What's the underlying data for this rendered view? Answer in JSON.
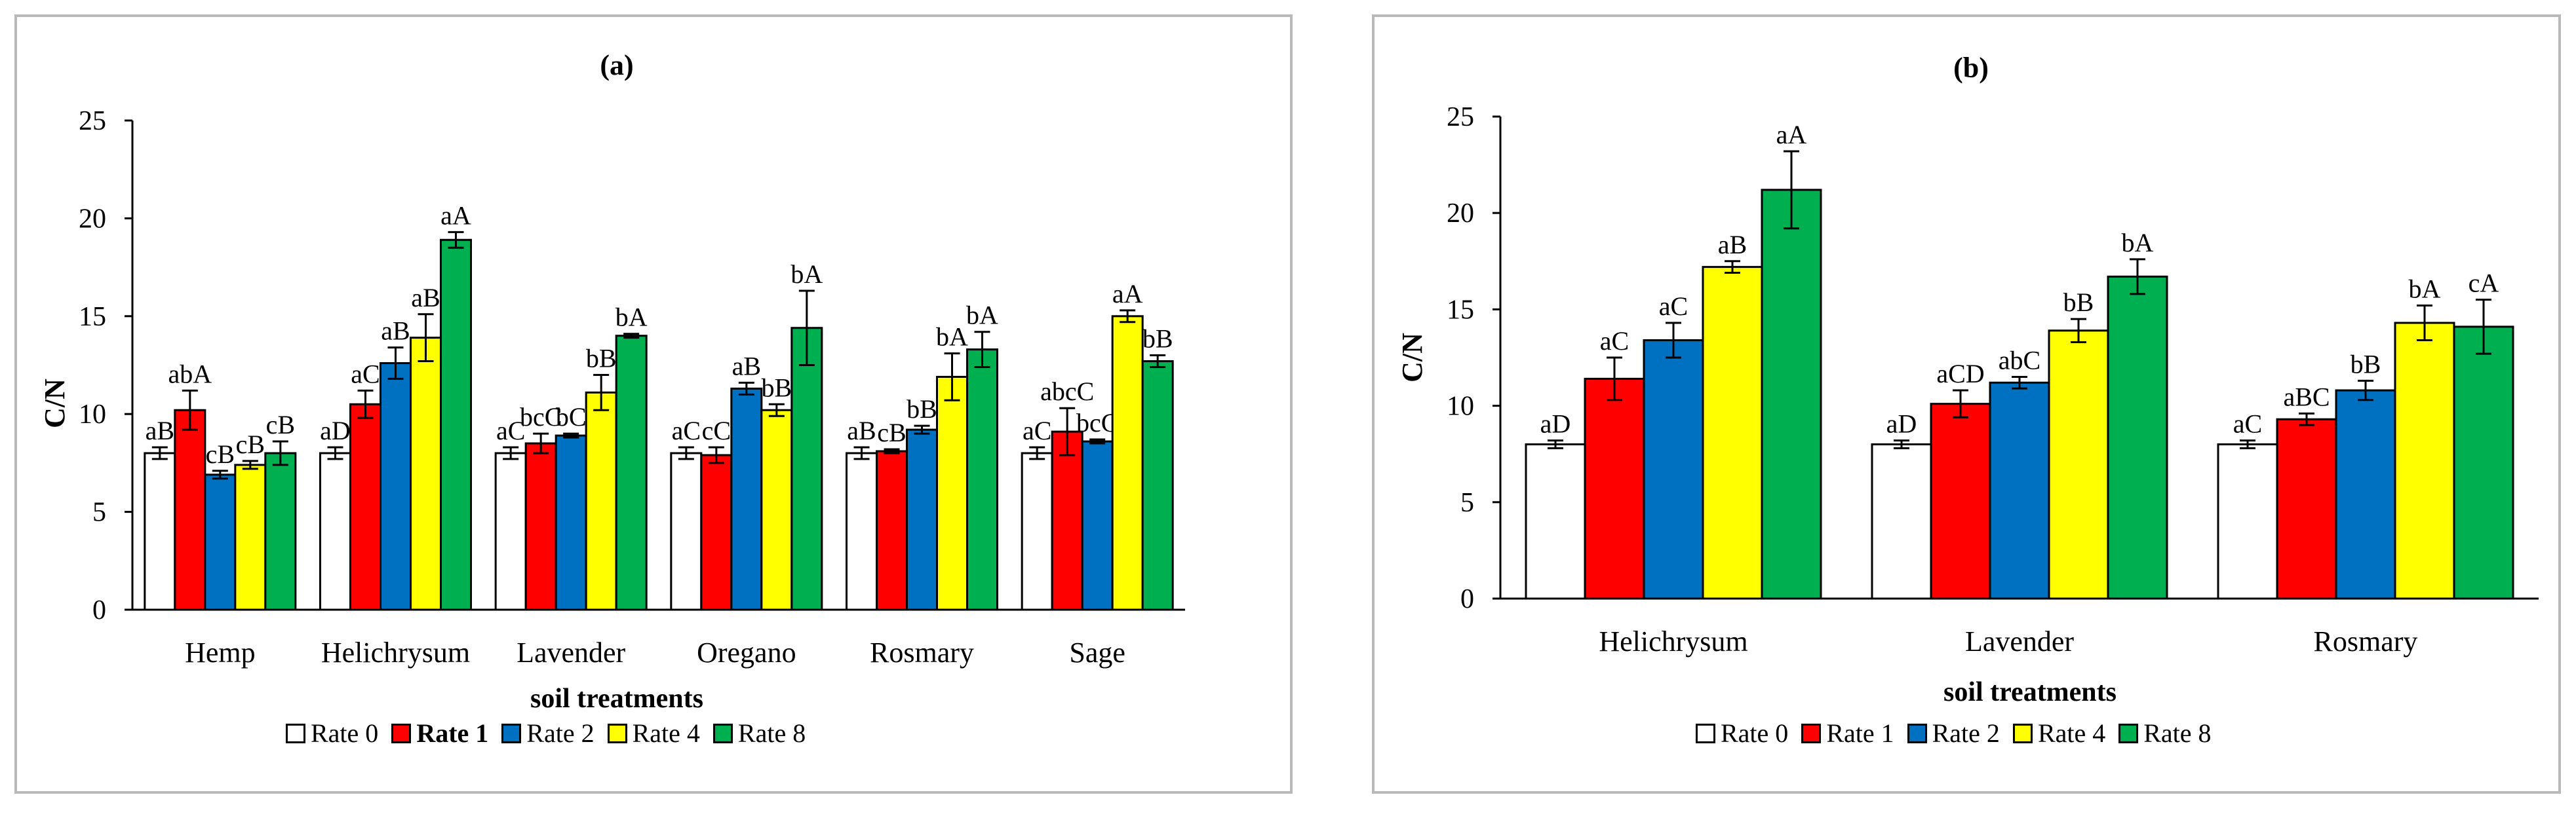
{
  "chart_data": [
    {
      "type": "bar",
      "panel_label": "(a)",
      "xlabel": "soil treatments",
      "ylabel": "C/N",
      "ylim": [
        0,
        25
      ],
      "yticks": [
        "0",
        "5",
        "10",
        "15",
        "20",
        "25"
      ],
      "categories": [
        "Hemp",
        "Helichrysum",
        "Lavender",
        "Oregano",
        "Rosmary",
        "Sage"
      ],
      "series": [
        {
          "name": "Rate 0",
          "color": "#ffffff",
          "values": [
            8.0,
            8.0,
            8.0,
            8.0,
            8.0,
            8.0
          ],
          "errors": [
            0.3,
            0.3,
            0.3,
            0.3,
            0.3,
            0.3
          ],
          "labels": [
            "aB",
            "aD",
            "aC",
            "aC",
            "aB",
            "aC"
          ]
        },
        {
          "name": "Rate 1",
          "color": "#ff0000",
          "values": [
            10.2,
            10.5,
            8.5,
            7.9,
            8.1,
            9.1
          ],
          "errors": [
            1.0,
            0.7,
            0.5,
            0.4,
            0.1,
            1.2
          ],
          "labels": [
            "abA",
            "aC",
            "bcC",
            "cC",
            "cB",
            "abcC"
          ]
        },
        {
          "name": "Rate 2",
          "color": "#0070c0",
          "values": [
            6.9,
            12.6,
            8.9,
            11.3,
            9.2,
            8.6
          ],
          "errors": [
            0.2,
            0.8,
            0.1,
            0.3,
            0.2,
            0.1
          ],
          "labels": [
            "cB",
            "aB",
            "bC",
            "aB",
            "bB",
            "bcC"
          ]
        },
        {
          "name": "Rate 4",
          "color": "#ffff00",
          "values": [
            7.4,
            13.9,
            11.1,
            10.2,
            11.9,
            15.0
          ],
          "errors": [
            0.2,
            1.2,
            0.9,
            0.3,
            1.2,
            0.3
          ],
          "labels": [
            "cB",
            "aB",
            "bB",
            "bB",
            "bA",
            "aA"
          ]
        },
        {
          "name": "Rate 8",
          "color": "#00b050",
          "values": [
            8.0,
            18.9,
            14.0,
            14.4,
            13.3,
            12.7
          ],
          "errors": [
            0.6,
            0.4,
            0.1,
            1.9,
            0.9,
            0.3
          ],
          "labels": [
            "cB",
            "aA",
            "bA",
            "bA",
            "bA",
            "bB"
          ]
        }
      ]
    },
    {
      "type": "bar",
      "panel_label": "(b)",
      "xlabel": "soil treatments",
      "ylabel": "C/N",
      "ylim": [
        0,
        25
      ],
      "yticks": [
        "0",
        "5",
        "10",
        "15",
        "20",
        "25"
      ],
      "categories": [
        "Helichrysum",
        "Lavender",
        "Rosmary"
      ],
      "series": [
        {
          "name": "Rate 0",
          "color": "#ffffff",
          "values": [
            8.0,
            8.0,
            8.0
          ],
          "errors": [
            0.2,
            0.2,
            0.2
          ],
          "labels": [
            "aD",
            "aD",
            "aC"
          ]
        },
        {
          "name": "Rate 1",
          "color": "#ff0000",
          "values": [
            11.4,
            10.1,
            9.3
          ],
          "errors": [
            1.1,
            0.7,
            0.3
          ],
          "labels": [
            "aC",
            "aCD",
            "aBC"
          ]
        },
        {
          "name": "Rate 2",
          "color": "#0070c0",
          "values": [
            13.4,
            11.2,
            10.8
          ],
          "errors": [
            0.9,
            0.3,
            0.5
          ],
          "labels": [
            "aC",
            "abC",
            "bB"
          ]
        },
        {
          "name": "Rate 4",
          "color": "#ffff00",
          "values": [
            17.2,
            13.9,
            14.3
          ],
          "errors": [
            0.3,
            0.6,
            0.9
          ],
          "labels": [
            "aB",
            "bB",
            "bA"
          ]
        },
        {
          "name": "Rate 8",
          "color": "#00b050",
          "values": [
            21.2,
            16.7,
            14.1
          ],
          "errors": [
            2.0,
            0.9,
            1.4
          ],
          "labels": [
            "aA",
            "bA",
            "cA"
          ]
        }
      ]
    }
  ]
}
